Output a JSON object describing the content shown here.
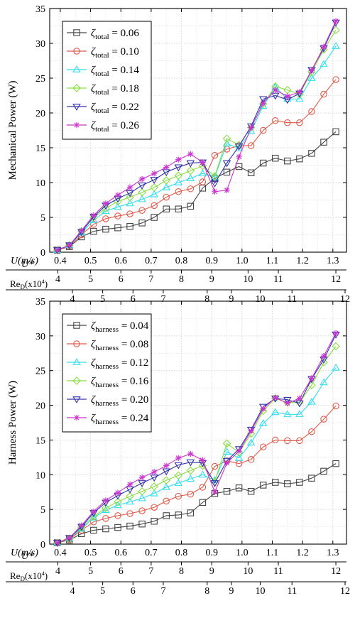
{
  "chart_data": [
    {
      "type": "line",
      "ylabel": "Mechanical Power (W)",
      "ylim": [
        0,
        35
      ],
      "yticks": [
        0,
        5,
        10,
        15,
        20,
        25,
        30,
        35
      ],
      "xlim": [
        0.365,
        1.345
      ],
      "grid": true,
      "legend_position": "top-left",
      "legend_param": "total",
      "x": [
        0.39,
        0.43,
        0.47,
        0.51,
        0.55,
        0.59,
        0.63,
        0.67,
        0.71,
        0.75,
        0.79,
        0.83,
        0.87,
        0.91,
        0.95,
        0.99,
        1.03,
        1.07,
        1.11,
        1.15,
        1.19,
        1.23,
        1.27,
        1.31
      ],
      "series": [
        {
          "name": "0.06",
          "color": "#444444",
          "marker": "square",
          "values": [
            0.3,
            0.8,
            2.2,
            3.0,
            3.3,
            3.5,
            3.7,
            4.2,
            5.0,
            6.2,
            6.2,
            6.6,
            9.2,
            10.6,
            11.5,
            12.3,
            11.4,
            12.8,
            13.5,
            13.1,
            13.4,
            14.2,
            15.8,
            17.3
          ]
        },
        {
          "name": "0.10",
          "color": "#e05a4a",
          "marker": "circle",
          "values": [
            0.3,
            0.9,
            2.5,
            4.0,
            4.8,
            5.2,
            5.5,
            6.0,
            6.7,
            7.9,
            8.7,
            9.1,
            10.1,
            13.9,
            14.8,
            15.3,
            15.3,
            17.5,
            18.9,
            18.6,
            18.6,
            20.2,
            22.7,
            24.8
          ]
        },
        {
          "name": "0.14",
          "color": "#33ddee",
          "marker": "triangle-up",
          "values": [
            0.3,
            1.0,
            2.8,
            4.6,
            5.9,
            6.5,
            7.0,
            7.6,
            8.3,
            9.3,
            10.0,
            10.6,
            11.3,
            10.8,
            15.6,
            14.9,
            17.4,
            21.0,
            23.7,
            22.0,
            22.0,
            25.0,
            27.0,
            29.6
          ]
        },
        {
          "name": "0.18",
          "color": "#88dd44",
          "marker": "diamond",
          "values": [
            0.3,
            1.0,
            3.0,
            5.0,
            6.3,
            7.3,
            7.9,
            8.6,
            9.3,
            10.3,
            11.0,
            11.7,
            12.4,
            10.9,
            16.3,
            15.4,
            17.9,
            21.3,
            23.8,
            23.3,
            22.7,
            25.9,
            29.1,
            31.9
          ]
        },
        {
          "name": "0.22",
          "color": "#3333aa",
          "marker": "triangle-down",
          "values": [
            0.3,
            1.0,
            2.9,
            5.1,
            6.7,
            7.7,
            8.5,
            9.6,
            10.4,
            11.5,
            12.2,
            12.8,
            12.9,
            9.9,
            12.8,
            15.2,
            18.1,
            22.0,
            22.5,
            21.9,
            22.8,
            26.2,
            29.3,
            33.0
          ]
        },
        {
          "name": "0.26",
          "color": "#cc33cc",
          "marker": "asterisk",
          "values": [
            0.3,
            1.0,
            3.1,
            5.3,
            7.0,
            8.2,
            9.3,
            10.5,
            11.3,
            12.2,
            13.3,
            14.1,
            12.9,
            8.7,
            8.9,
            13.7,
            17.9,
            21.4,
            23.3,
            22.4,
            23.0,
            26.1,
            29.5,
            33.2
          ]
        }
      ]
    },
    {
      "type": "line",
      "ylabel": "Harness Power (W)",
      "ylim": [
        0,
        35
      ],
      "yticks": [
        0,
        5,
        10,
        15,
        20,
        25,
        30,
        35
      ],
      "xlim": [
        0.365,
        1.345
      ],
      "grid": true,
      "legend_position": "top-left",
      "legend_param": "harness",
      "x": [
        0.39,
        0.43,
        0.47,
        0.51,
        0.55,
        0.59,
        0.63,
        0.67,
        0.71,
        0.75,
        0.79,
        0.83,
        0.87,
        0.91,
        0.95,
        0.99,
        1.03,
        1.07,
        1.11,
        1.15,
        1.19,
        1.23,
        1.27,
        1.31
      ],
      "series": [
        {
          "name": "0.04",
          "color": "#444444",
          "marker": "square",
          "values": [
            0.2,
            0.6,
            1.5,
            2.0,
            2.2,
            2.4,
            2.6,
            2.9,
            3.3,
            4.1,
            4.2,
            4.5,
            6.0,
            7.3,
            7.6,
            8.1,
            7.6,
            8.5,
            8.9,
            8.7,
            8.9,
            9.5,
            10.5,
            11.6
          ]
        },
        {
          "name": "0.08",
          "color": "#e05a4a",
          "marker": "circle",
          "values": [
            0.2,
            0.7,
            2.0,
            3.2,
            3.7,
            4.1,
            4.4,
            4.8,
            5.3,
            6.2,
            6.9,
            7.2,
            8.2,
            11.2,
            12.0,
            11.6,
            12.2,
            14.0,
            15.0,
            14.9,
            14.9,
            16.2,
            18.0,
            19.9
          ]
        },
        {
          "name": "0.12",
          "color": "#33ddee",
          "marker": "triangle-up",
          "values": [
            0.2,
            0.8,
            2.2,
            3.8,
            4.9,
            5.6,
            6.1,
            6.6,
            7.3,
            8.2,
            8.8,
            9.4,
            10.0,
            9.2,
            13.3,
            12.4,
            14.6,
            17.4,
            19.0,
            18.7,
            18.7,
            20.5,
            23.3,
            25.4
          ]
        },
        {
          "name": "0.16",
          "color": "#88dd44",
          "marker": "diamond",
          "values": [
            0.2,
            0.8,
            2.4,
            4.0,
            5.2,
            6.1,
            6.9,
            7.6,
            8.3,
            9.2,
            9.9,
            10.6,
            11.3,
            9.0,
            14.5,
            13.2,
            15.9,
            19.2,
            21.0,
            20.4,
            20.4,
            22.9,
            26.2,
            28.5
          ]
        },
        {
          "name": "0.20",
          "color": "#3333aa",
          "marker": "triangle-down",
          "values": [
            0.2,
            0.9,
            2.5,
            4.5,
            6.0,
            7.0,
            7.9,
            8.8,
            9.6,
            10.5,
            11.4,
            11.8,
            11.7,
            8.8,
            12.0,
            13.7,
            16.5,
            19.8,
            21.0,
            20.8,
            20.3,
            23.8,
            26.6,
            30.2
          ]
        },
        {
          "name": "0.24",
          "color": "#cc33cc",
          "marker": "asterisk",
          "values": [
            0.2,
            0.9,
            2.7,
            4.7,
            6.3,
            7.4,
            8.6,
            9.6,
            10.4,
            11.3,
            12.4,
            13.0,
            12.1,
            7.5,
            11.7,
            13.4,
            16.3,
            19.5,
            21.1,
            20.3,
            21.0,
            23.9,
            27.1,
            30.4
          ]
        }
      ]
    }
  ],
  "legend_prefix": "ζ",
  "axis_labels": {
    "u": "U(m/s)",
    "ustar": "U*",
    "re_main": "Re",
    "re_sub": "D",
    "re_suffix": "(x10",
    "re_exp": "4",
    "re_close": ")"
  },
  "u_ticks": [
    "0.4",
    "0.5",
    "0.6",
    "0.7",
    "0.8",
    "0.9",
    "1.0",
    "1.1",
    "1.2",
    "1.3"
  ],
  "u_tick_values": [
    0.4,
    0.5,
    0.6,
    0.7,
    0.8,
    0.9,
    1.0,
    1.1,
    1.2,
    1.3
  ],
  "ustar_ticks": [
    "4",
    "5",
    "6",
    "7",
    "8",
    "9",
    "10",
    "11",
    "12"
  ],
  "ustar_tick_values": [
    0.392,
    0.5,
    0.6,
    0.7,
    0.8,
    0.9,
    1.02,
    1.12,
    1.31
  ],
  "re_ticks": [
    "4",
    "5",
    "6",
    "7",
    "8",
    "9",
    "10",
    "11",
    "12"
  ],
  "re_tick_values": [
    0.44,
    0.54,
    0.64,
    0.74,
    0.885,
    0.965,
    1.06,
    1.165,
    1.345
  ]
}
